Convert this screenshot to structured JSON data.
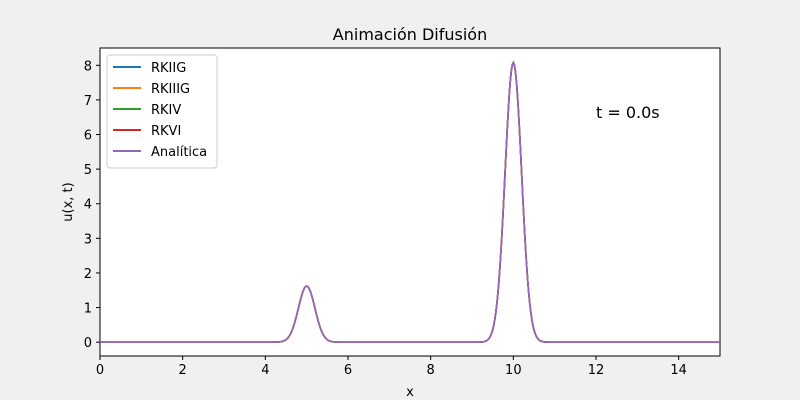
{
  "chart_data": {
    "type": "line",
    "title": "Animación Difusión",
    "xlabel": "x",
    "ylabel": "u(x, t)",
    "xlim": [
      0,
      15
    ],
    "ylim": [
      -0.4,
      8.5
    ],
    "xticks": [
      0,
      2,
      4,
      6,
      8,
      10,
      12,
      14
    ],
    "yticks": [
      0,
      1,
      2,
      3,
      4,
      5,
      6,
      7,
      8
    ],
    "grid": false,
    "legend_position": "upper-left",
    "annotation": "t = 0.0s",
    "peaks": [
      {
        "x": 5,
        "height": 1.62,
        "sigma": 0.2
      },
      {
        "x": 10,
        "height": 8.08,
        "sigma": 0.2
      }
    ],
    "series": [
      {
        "name": "RKIIG",
        "color": "#1f77b4"
      },
      {
        "name": "RKIIIG",
        "color": "#ff7f0e"
      },
      {
        "name": "RKIV",
        "color": "#2ca02c"
      },
      {
        "name": "RKVI",
        "color": "#d62728"
      },
      {
        "name": "Analítica",
        "color": "#9467bd"
      }
    ]
  }
}
